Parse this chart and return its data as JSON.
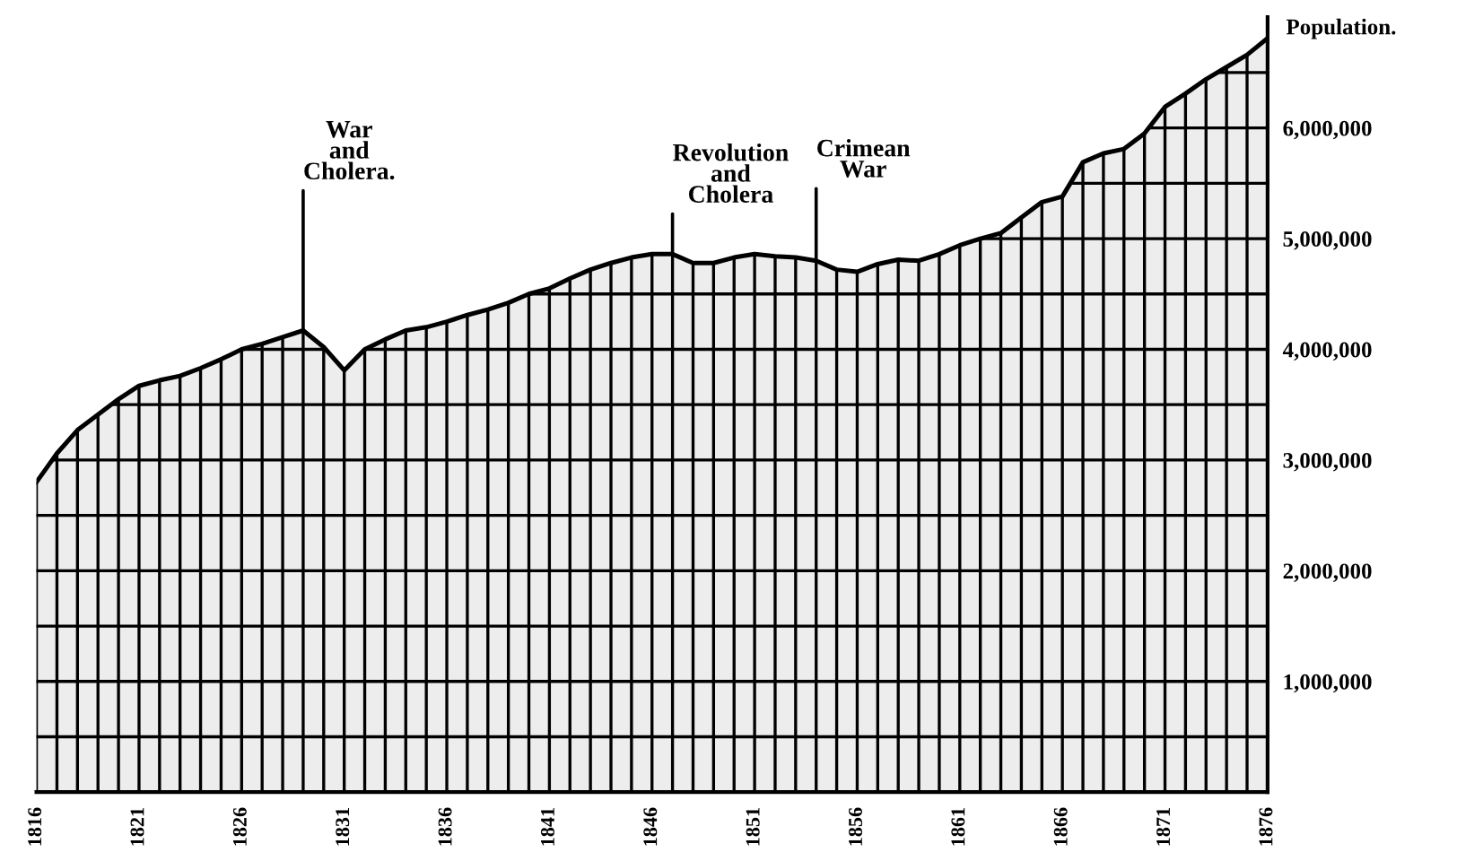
{
  "chart_data": {
    "type": "area",
    "x": [
      1816,
      1817,
      1818,
      1819,
      1820,
      1821,
      1822,
      1823,
      1824,
      1825,
      1826,
      1827,
      1828,
      1829,
      1830,
      1831,
      1832,
      1833,
      1834,
      1835,
      1836,
      1837,
      1838,
      1839,
      1840,
      1841,
      1842,
      1843,
      1844,
      1845,
      1846,
      1847,
      1848,
      1849,
      1850,
      1851,
      1852,
      1853,
      1854,
      1855,
      1856,
      1857,
      1858,
      1859,
      1860,
      1861,
      1862,
      1863,
      1864,
      1865,
      1866,
      1867,
      1868,
      1869,
      1870,
      1871,
      1872,
      1873,
      1874,
      1875,
      1876
    ],
    "series": [
      {
        "color": "#000000",
        "values": [
          2800000,
          3060000,
          3270000,
          3410000,
          3550000,
          3670000,
          3720000,
          3760000,
          3830000,
          3910000,
          4000000,
          4050000,
          4110000,
          4170000,
          4020000,
          3810000,
          4000000,
          4090000,
          4170000,
          4200000,
          4250000,
          4310000,
          4360000,
          4420000,
          4500000,
          4550000,
          4640000,
          4720000,
          4780000,
          4830000,
          4860000,
          4860000,
          4780000,
          4780000,
          4830000,
          4860000,
          4840000,
          4830000,
          4800000,
          4720000,
          4700000,
          4770000,
          4810000,
          4800000,
          4860000,
          4940000,
          5000000,
          5050000,
          5190000,
          5330000,
          5380000,
          5690000,
          5770000,
          5810000,
          5950000,
          6190000,
          6310000,
          6440000,
          6550000,
          6660000,
          6810000
        ]
      }
    ],
    "ylabel": "Population.",
    "xlim": [
      1816,
      1876
    ],
    "xticks": [
      1816,
      {
        "value": 1817,
        "label": null
      },
      {
        "value": 1818,
        "label": null
      },
      {
        "value": 1819,
        "label": null
      },
      {
        "value": 1820,
        "label": null
      },
      1821,
      {
        "value": 1822,
        "label": null
      },
      {
        "value": 1823,
        "label": null
      },
      {
        "value": 1824,
        "label": null
      },
      {
        "value": 1825,
        "label": null
      },
      1826,
      {
        "value": 1827,
        "label": null
      },
      {
        "value": 1828,
        "label": null
      },
      {
        "value": 1829,
        "label": null
      },
      {
        "value": 1830,
        "label": null
      },
      1831,
      {
        "value": 1832,
        "label": null
      },
      {
        "value": 1833,
        "label": null
      },
      {
        "value": 1834,
        "label": null
      },
      {
        "value": 1835,
        "label": null
      },
      1836,
      {
        "value": 1837,
        "label": null
      },
      {
        "value": 1838,
        "label": null
      },
      {
        "value": 1839,
        "label": null
      },
      {
        "value": 1840,
        "label": null
      },
      1841,
      {
        "value": 1842,
        "label": null
      },
      {
        "value": 1843,
        "label": null
      },
      {
        "value": 1844,
        "label": null
      },
      {
        "value": 1845,
        "label": null
      },
      1846,
      {
        "value": 1847,
        "label": null
      },
      {
        "value": 1848,
        "label": null
      },
      {
        "value": 1849,
        "label": null
      },
      {
        "value": 1850,
        "label": null
      },
      1851,
      {
        "value": 1852,
        "label": null
      },
      {
        "value": 1853,
        "label": null
      },
      {
        "value": 1854,
        "label": null
      },
      {
        "value": 1855,
        "label": null
      },
      1856,
      {
        "value": 1857,
        "label": null
      },
      {
        "value": 1858,
        "label": null
      },
      {
        "value": 1859,
        "label": null
      },
      {
        "value": 1860,
        "label": null
      },
      1861,
      {
        "value": 1862,
        "label": null
      },
      {
        "value": 1863,
        "label": null
      },
      {
        "value": 1864,
        "label": null
      },
      {
        "value": 1865,
        "label": null
      },
      1866,
      {
        "value": 1867,
        "label": null
      },
      {
        "value": 1868,
        "label": null
      },
      {
        "value": 1869,
        "label": null
      },
      {
        "value": 1870,
        "label": null
      },
      1871,
      {
        "value": 1872,
        "label": null
      },
      {
        "value": 1873,
        "label": null
      },
      {
        "value": 1874,
        "label": null
      },
      {
        "value": 1875,
        "label": null
      },
      1876
    ],
    "ylim": [
      0,
      7000000
    ],
    "yticks": [
      {
        "value": 500000,
        "label": null
      },
      {
        "value": 1000000,
        "label": "1,000,000"
      },
      {
        "value": 1500000,
        "label": null
      },
      {
        "value": 2000000,
        "label": "2,000,000"
      },
      {
        "value": 2500000,
        "label": null
      },
      {
        "value": 3000000,
        "label": "3,000,000"
      },
      {
        "value": 3500000,
        "label": null
      },
      {
        "value": 4000000,
        "label": "4,000,000"
      },
      {
        "value": 4500000,
        "label": null
      },
      {
        "value": 5000000,
        "label": "5,000,000"
      },
      {
        "value": 5500000,
        "label": null
      },
      {
        "value": 6000000,
        "label": "6,000,000"
      },
      {
        "value": 6500000,
        "label": null
      }
    ],
    "grid": true,
    "annotations": [
      {
        "text": "War\nand\nCholera.",
        "x": 1829,
        "y": 4170000
      },
      {
        "text": "Revolution\nand\nCholera",
        "x": 1847,
        "y": 4860000
      },
      {
        "text": "Crimean\nWar",
        "x": 1854,
        "y": 4800000
      }
    ]
  }
}
